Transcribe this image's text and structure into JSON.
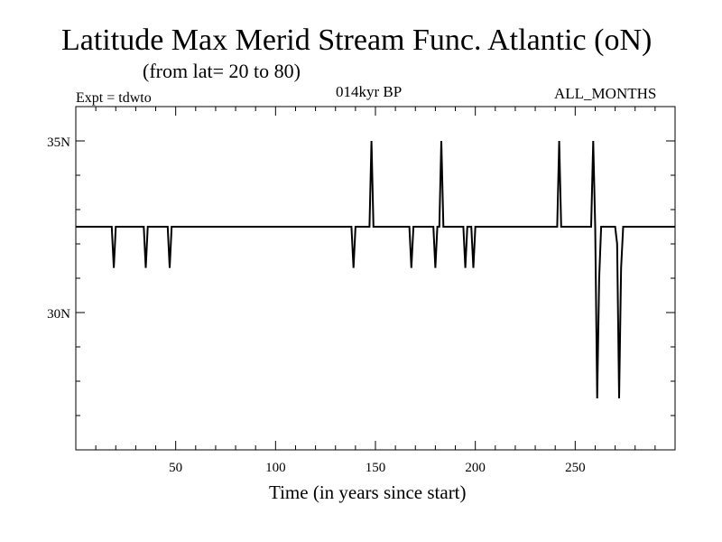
{
  "chart_data": {
    "type": "line",
    "title": "Latitude Max Merid Stream Func. Atlantic (oN)",
    "subtitle": "(from lat= 20 to 80)",
    "top_left_label": "Expt = tdwto",
    "top_center_label": "014kyr BP",
    "top_right_label": "ALL_MONTHS",
    "xlabel": "Time (in years since start)",
    "ylabel": "",
    "xlim": [
      0,
      300
    ],
    "ylim": [
      26,
      36
    ],
    "x_ticks": [
      {
        "value": 50,
        "label": "50"
      },
      {
        "value": 100,
        "label": "100"
      },
      {
        "value": 150,
        "label": "150"
      },
      {
        "value": 200,
        "label": "200"
      },
      {
        "value": 250,
        "label": "250"
      }
    ],
    "y_ticks": [
      {
        "value": 30,
        "label": "30N"
      },
      {
        "value": 35,
        "label": "35N"
      }
    ],
    "grid": false,
    "series": [
      {
        "color": "#000000",
        "x": [
          0,
          18,
          19,
          20,
          34,
          35,
          36,
          46,
          47,
          48,
          138,
          139,
          140,
          147,
          148,
          149,
          150,
          167,
          168,
          169,
          179,
          180,
          181,
          182,
          183,
          184,
          194,
          195,
          196,
          198,
          199,
          200,
          241,
          242,
          243,
          244,
          258,
          259,
          260,
          261,
          262,
          263,
          264,
          270,
          271,
          272,
          273,
          274,
          275,
          276,
          300
        ],
        "y": [
          32.5,
          32.5,
          31.3,
          32.5,
          32.5,
          31.3,
          32.5,
          32.5,
          31.3,
          32.5,
          32.5,
          31.3,
          32.5,
          32.5,
          35.0,
          32.5,
          32.5,
          32.5,
          31.3,
          32.5,
          32.5,
          31.3,
          32.5,
          32.5,
          35.0,
          32.5,
          32.5,
          31.3,
          32.5,
          32.5,
          31.3,
          32.5,
          32.5,
          35.0,
          32.5,
          32.5,
          32.5,
          35.0,
          32.5,
          27.5,
          31.0,
          32.5,
          32.5,
          32.5,
          32.0,
          27.5,
          31.3,
          32.5,
          32.5,
          32.5,
          32.5
        ]
      }
    ]
  }
}
